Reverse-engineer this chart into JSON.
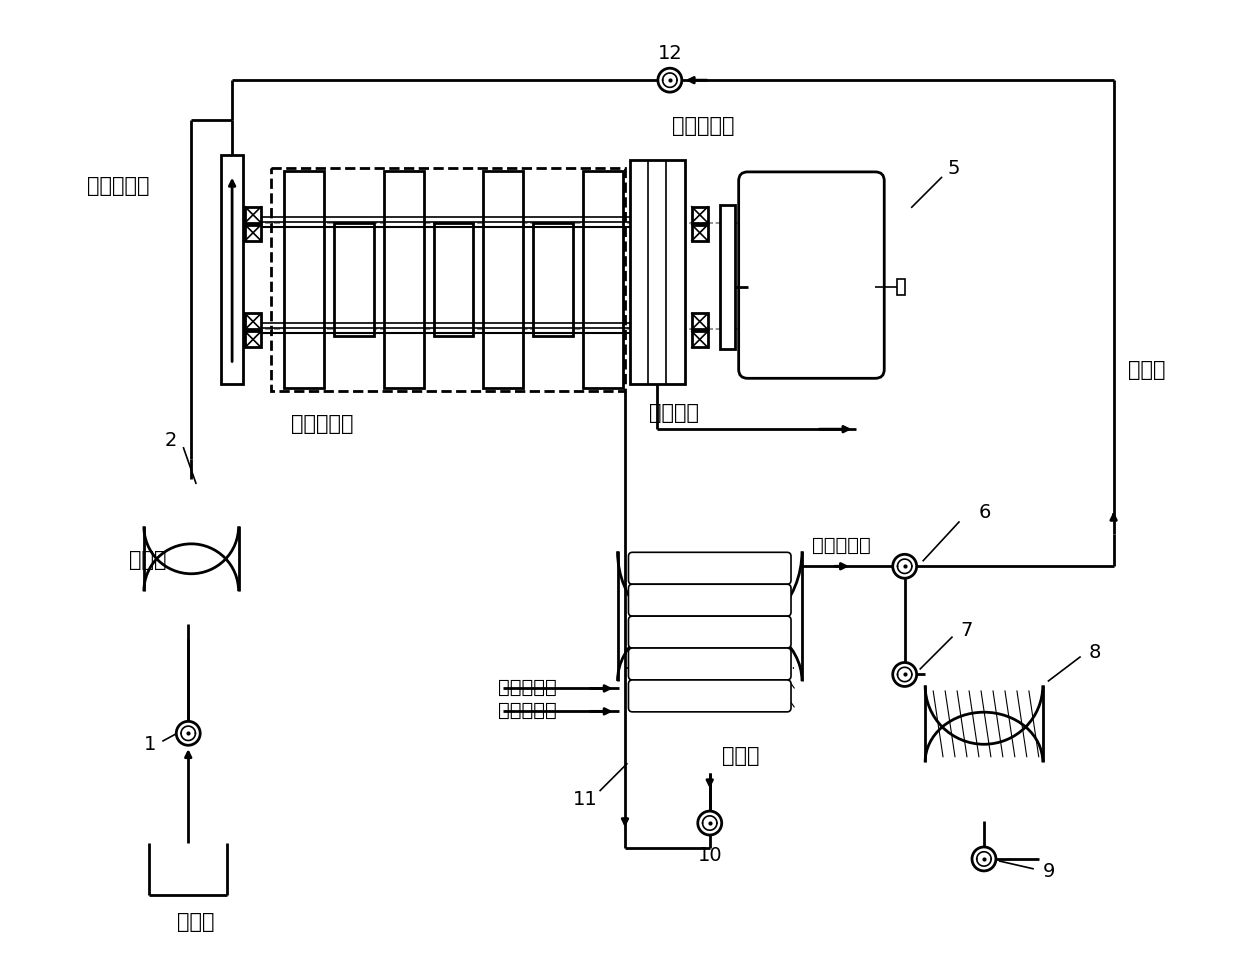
{
  "bg": "#ffffff",
  "lc": "#000000",
  "labels": {
    "peng_zhang_ru": "膨胀机入口",
    "peng_zhang_chu": "膨胀机出口",
    "zhen_kong_ru": "真空泵入口",
    "zhi_pai_da_qi": "直排大气",
    "bu_ning_qi": "不凝气",
    "leng_que_chu": "冷却水出口",
    "leng_que_ru": "冷却水入口",
    "shui_zheng_qi": "水蒸气入口",
    "leng_que_shui": "冷却水",
    "shan_zheng_qi": "闪蒸器",
    "di_re_jing": "地热井"
  },
  "font_label": 15,
  "font_num": 14,
  "lw_main": 2.0,
  "lw_thin": 1.2
}
